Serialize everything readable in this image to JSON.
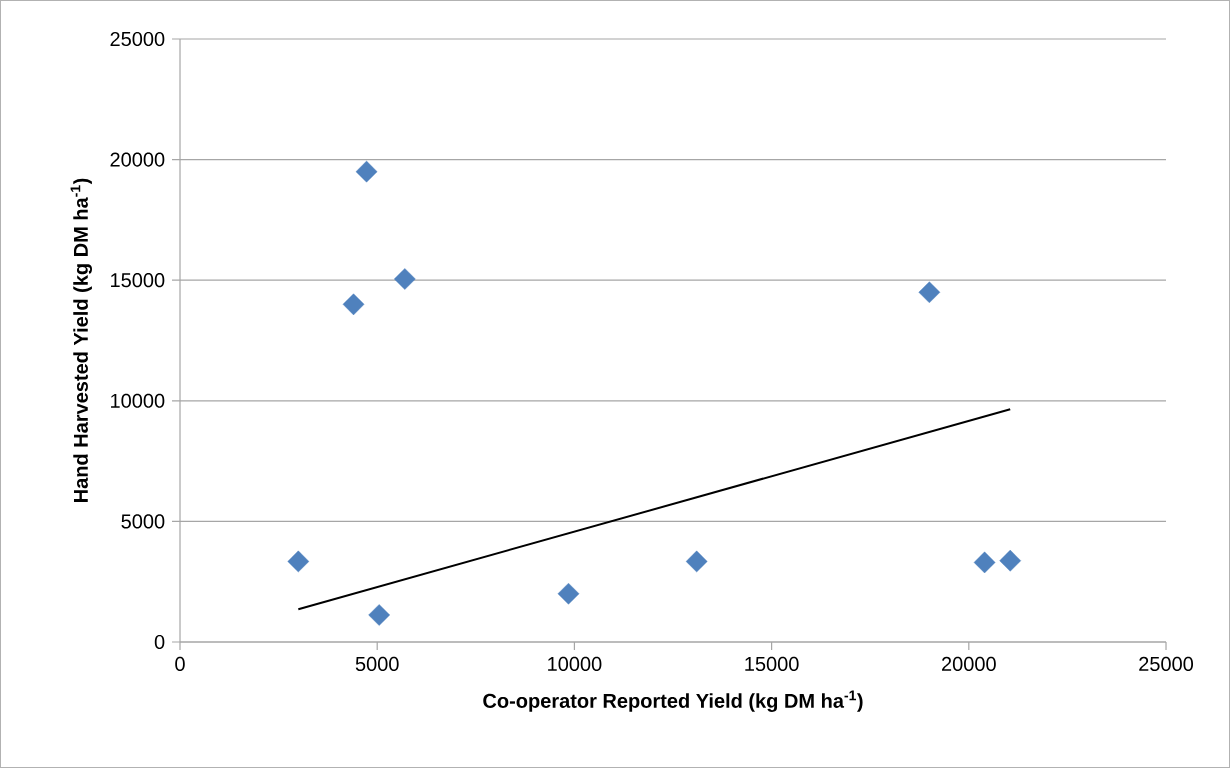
{
  "chart_data": {
    "type": "scatter",
    "xlabel": "Co-operator Reported Yield (kg DM ha$^{-1}$)",
    "ylabel": "Hand Harvested Yield (kg DM ha$^{-1}$)",
    "series": [
      {
        "color": "#4f81bd",
        "x": [
          3000,
          4730,
          4400,
          5700,
          5050,
          9850,
          13100,
          19000,
          20400,
          21050
        ],
        "values": [
          3340,
          19500,
          14000,
          15050,
          1120,
          2000,
          3340,
          14500,
          3300,
          3370
        ]
      },
      {
        "type": "line",
        "marker": "none",
        "color": "#000000",
        "x": [
          3000,
          21050
        ],
        "values": [
          1360,
          9650
        ]
      }
    ],
    "marker": "diamond",
    "grid": "y",
    "xlim": [
      0,
      25000
    ],
    "ylim": [
      0,
      25000
    ],
    "xticks": [
      0,
      5000,
      10000,
      15000,
      20000,
      25000
    ],
    "yticks": [
      0,
      5000,
      10000,
      15000,
      20000,
      25000
    ]
  }
}
